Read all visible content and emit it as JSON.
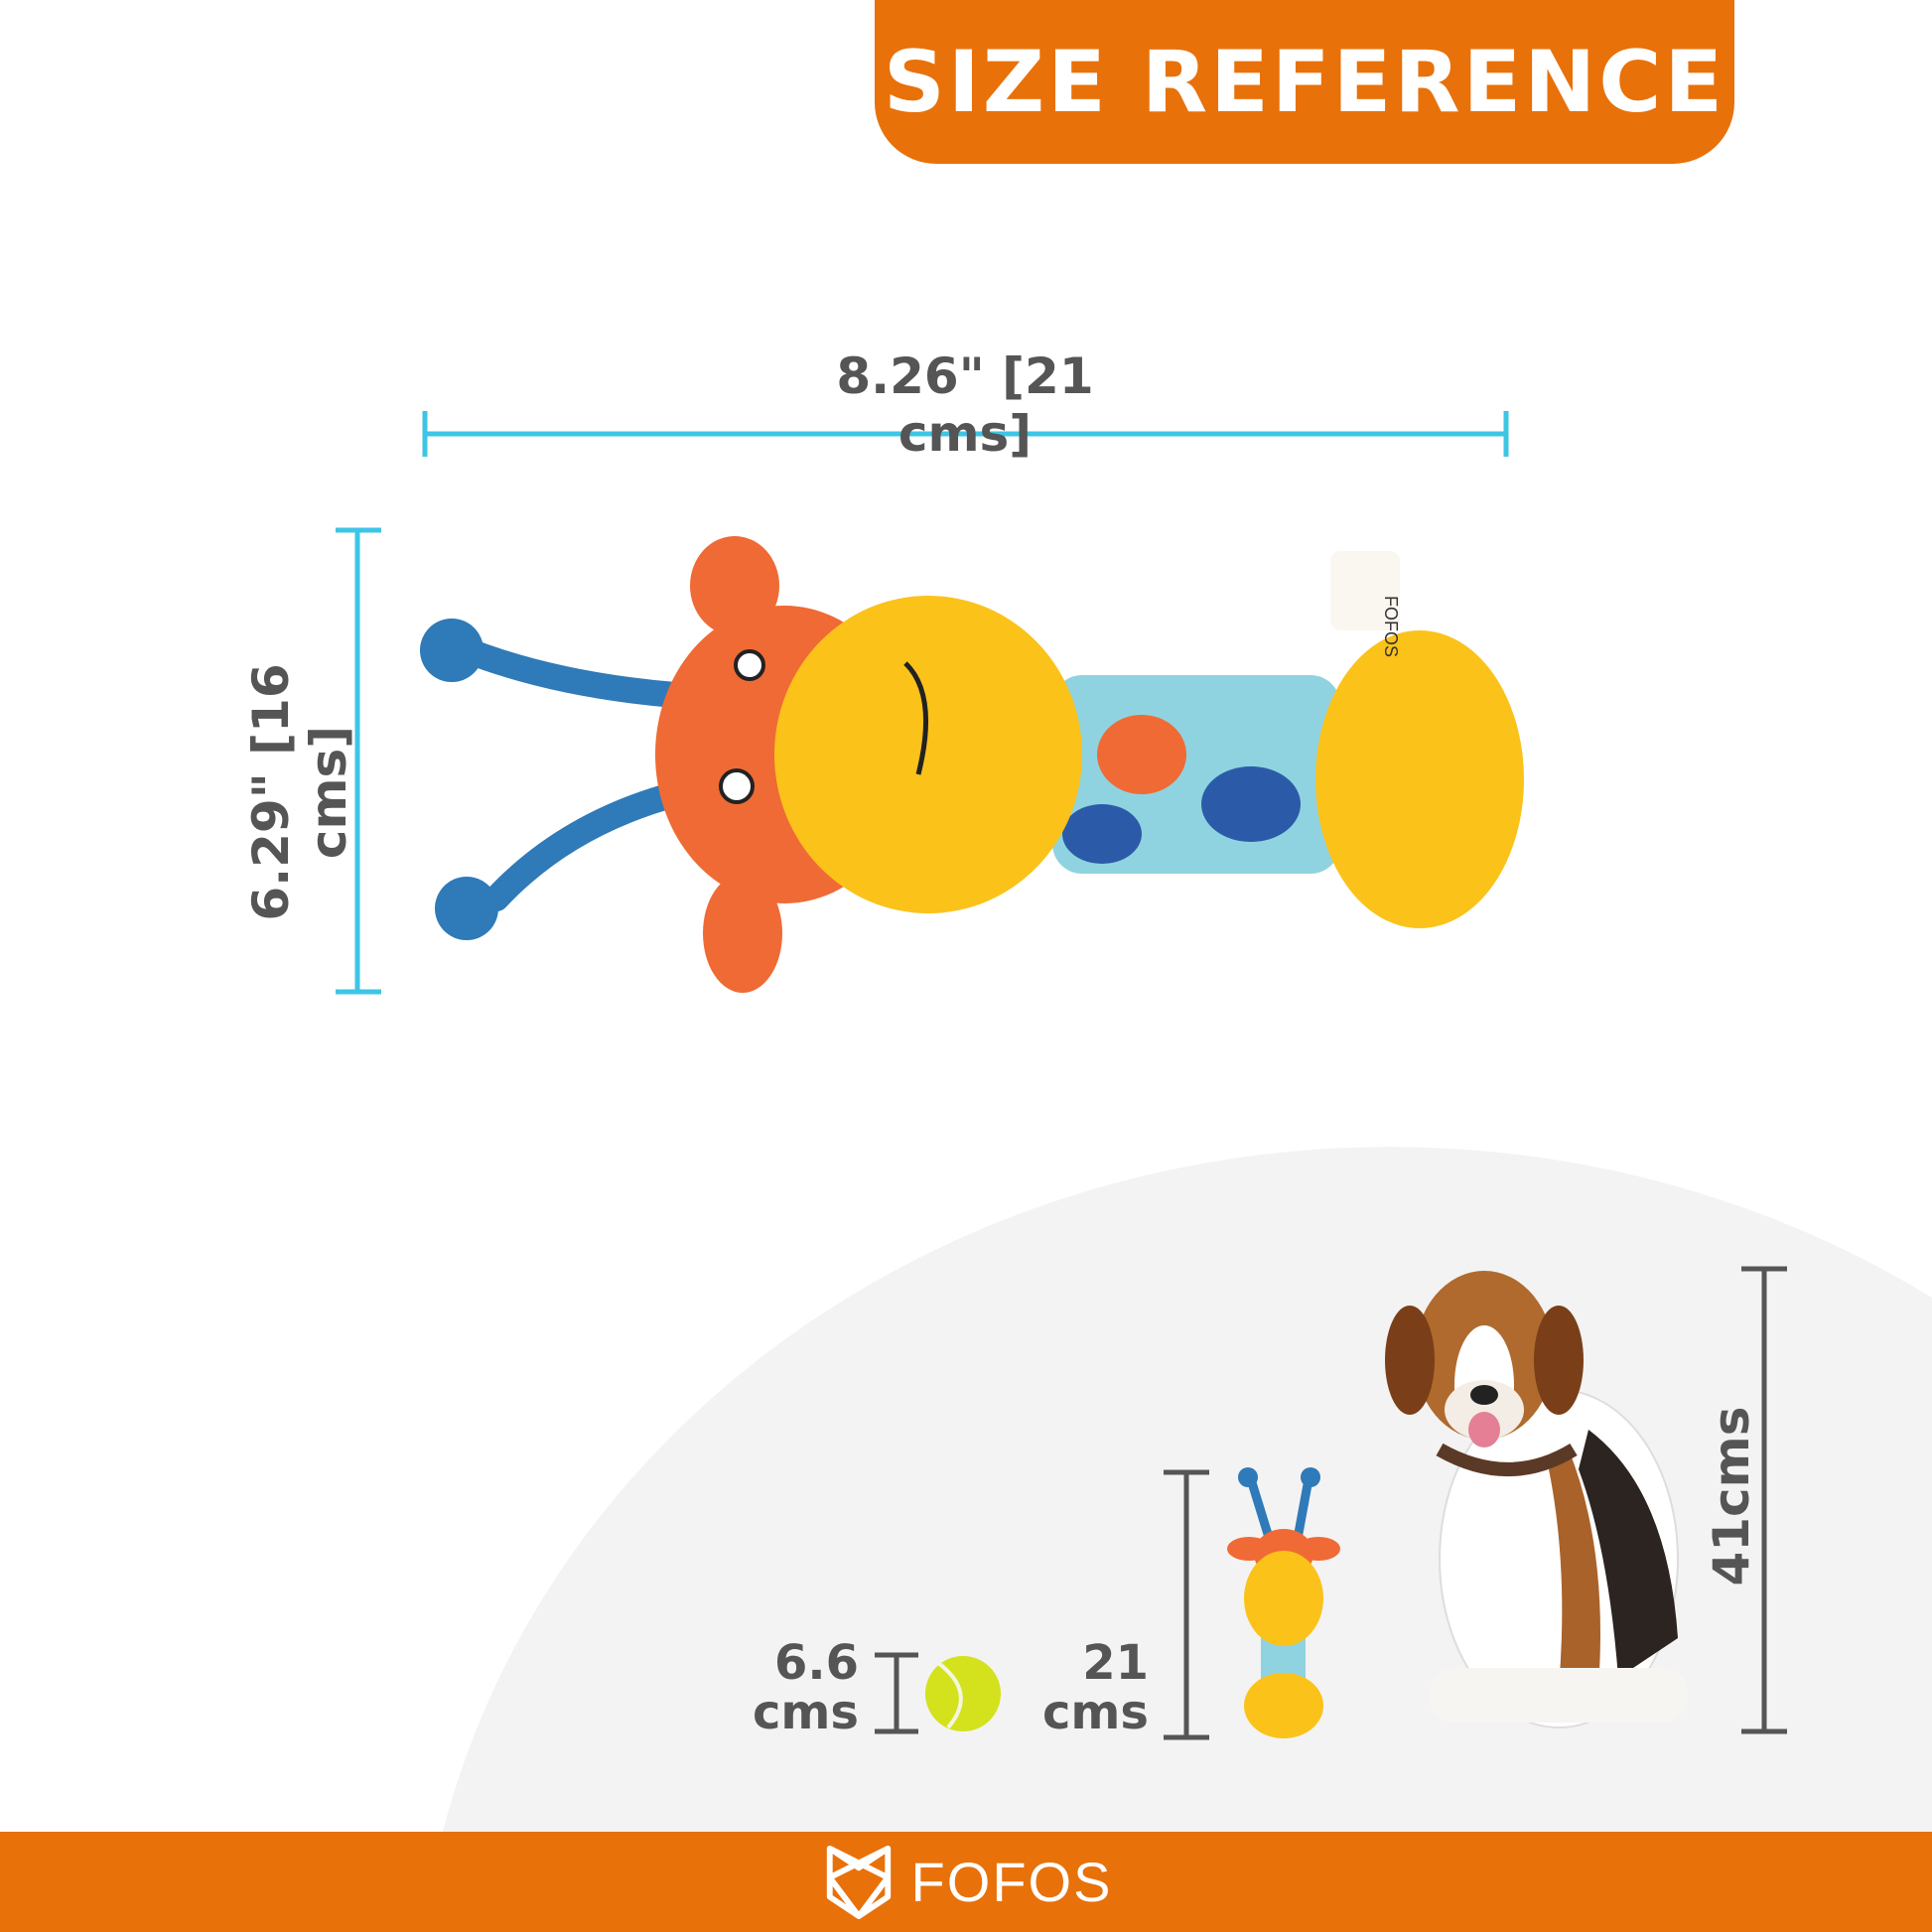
{
  "banner": {
    "title": "SIZE REFERENCE"
  },
  "dimensions": {
    "width_label": "8.26\" [21 cms]",
    "height_label": "6.29\" [16 cms]"
  },
  "comparison": {
    "ball_value": "6.6",
    "ball_unit": "cms",
    "toy_value": "21",
    "toy_unit": "cms",
    "dog_label": "41cms"
  },
  "tag_text": "FOFOS",
  "footer": {
    "brand": "FOFOS"
  },
  "colors": {
    "accent": "#e8710a",
    "dimension_line": "#3ec5e6",
    "gray_line": "#555555"
  }
}
